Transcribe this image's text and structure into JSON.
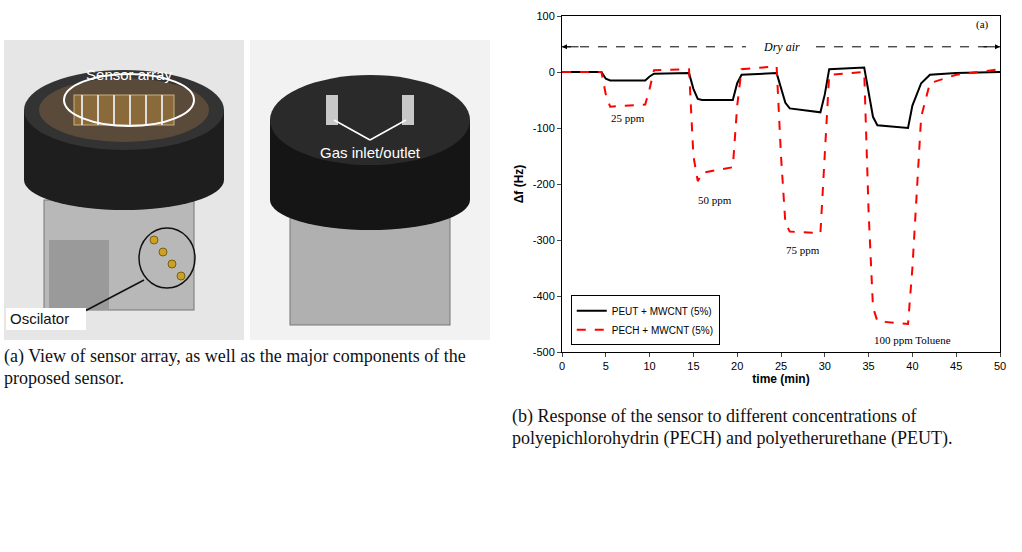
{
  "photo": {
    "labels": {
      "sensor_array": "Sensor array",
      "gas": "Gas inlet/outlet",
      "oscillator": "Oscilator"
    },
    "caption": "(a) View of sensor array, as well as the major components of the proposed sensor."
  },
  "chart_data": {
    "type": "line",
    "caption": "(b) Response of the sensor to different concentrations of polyepichlorohydrin (PECH) and polyetherurethane (PEUT).",
    "x_label": "time (min)",
    "y_label": "Δf (Hz)",
    "x": [
      0,
      4.5,
      5,
      5.5,
      9.5,
      10,
      10.5,
      14.5,
      15,
      15.5,
      16,
      19.5,
      20,
      20.5,
      24.5,
      25,
      25.5,
      26,
      29.5,
      30,
      30.5,
      34.5,
      35,
      35.5,
      36,
      39.5,
      40,
      41,
      42,
      45,
      50
    ],
    "series": [
      {
        "name": "PEUT + MWCNT (5%)",
        "color": "#000000",
        "line_style": "solid",
        "values": [
          0,
          0,
          -12,
          -15,
          -15,
          -8,
          -3,
          -2,
          -30,
          -48,
          -50,
          -50,
          -20,
          -5,
          -2,
          -30,
          -55,
          -65,
          -72,
          -40,
          5,
          8,
          -40,
          -80,
          -95,
          -100,
          -60,
          -20,
          -5,
          -2,
          0
        ]
      },
      {
        "name": "PECH + MWCNT (5%)",
        "color": "#ff0000",
        "line_style": "dash",
        "values": [
          0,
          0,
          -40,
          -62,
          -58,
          -30,
          3,
          5,
          -150,
          -195,
          -180,
          -170,
          -60,
          5,
          10,
          -150,
          -270,
          -285,
          -288,
          -150,
          -5,
          0,
          -250,
          -420,
          -445,
          -450,
          -350,
          -80,
          -20,
          -5,
          5
        ]
      }
    ],
    "xlim": [
      0,
      50
    ],
    "xticks": [
      0,
      5,
      10,
      15,
      20,
      25,
      30,
      35,
      40,
      45,
      50
    ],
    "ylim": [
      -500,
      100
    ],
    "yticks": [
      -500,
      -400,
      -300,
      -200,
      -100,
      0,
      100
    ],
    "grid": false,
    "legend": "lower left",
    "annotations": [
      {
        "text": "Dry air",
        "x": 25,
        "y": 45
      },
      {
        "text": "(a)",
        "x": 49,
        "y": 85
      },
      {
        "text": "25 ppm",
        "x": 7.5,
        "y": -82
      },
      {
        "text": "50 ppm",
        "x": 17.5,
        "y": -228
      },
      {
        "text": "75 ppm",
        "x": 27.5,
        "y": -318
      },
      {
        "text": "100 ppm Toluene",
        "x": 40,
        "y": -478
      }
    ]
  }
}
